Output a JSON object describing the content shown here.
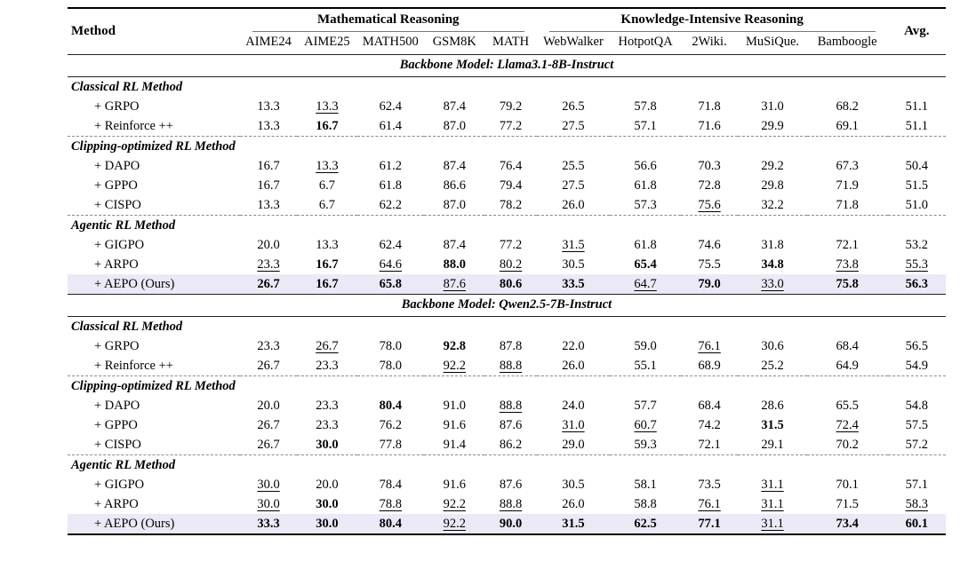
{
  "colors": {
    "highlight_row": "#ece9f7"
  },
  "table": {
    "method_header": "Method",
    "avg_header": "Avg.",
    "groups": [
      {
        "label": "Mathematical Reasoning",
        "columns": [
          "AIME24",
          "AIME25",
          "MATH500",
          "GSM8K",
          "MATH"
        ]
      },
      {
        "label": "Knowledge-Intensive Reasoning",
        "columns": [
          "WebWalker",
          "HotpotQA",
          "2Wiki.",
          "MuSiQue.",
          "Bamboogle"
        ]
      }
    ],
    "sections": [
      {
        "banner": "Backbone Model: Llama3.1-8B-Instruct",
        "subsections": [
          {
            "label": "Classical RL Method",
            "rows": [
              {
                "method": "+ GRPO",
                "values": [
                  "13.3",
                  "13.3",
                  "62.4",
                  "87.4",
                  "79.2",
                  "26.5",
                  "57.8",
                  "71.8",
                  "31.0",
                  "68.2",
                  "51.1"
                ],
                "bold": [],
                "underline": [
                  1
                ],
                "highlight": false
              },
              {
                "method": "+ Reinforce ++",
                "values": [
                  "13.3",
                  "16.7",
                  "61.4",
                  "87.0",
                  "77.2",
                  "27.5",
                  "57.1",
                  "71.6",
                  "29.9",
                  "69.1",
                  "51.1"
                ],
                "bold": [
                  1
                ],
                "underline": [],
                "highlight": false
              }
            ]
          },
          {
            "label": "Clipping-optimized RL Method",
            "rows": [
              {
                "method": "+ DAPO",
                "values": [
                  "16.7",
                  "13.3",
                  "61.2",
                  "87.4",
                  "76.4",
                  "25.5",
                  "56.6",
                  "70.3",
                  "29.2",
                  "67.3",
                  "50.4"
                ],
                "bold": [],
                "underline": [
                  1
                ],
                "highlight": false
              },
              {
                "method": "+ GPPO",
                "values": [
                  "16.7",
                  "6.7",
                  "61.8",
                  "86.6",
                  "79.4",
                  "27.5",
                  "61.8",
                  "72.8",
                  "29.8",
                  "71.9",
                  "51.5"
                ],
                "bold": [],
                "underline": [],
                "highlight": false
              },
              {
                "method": "+ CISPO",
                "values": [
                  "13.3",
                  "6.7",
                  "62.2",
                  "87.0",
                  "78.2",
                  "26.0",
                  "57.3",
                  "75.6",
                  "32.2",
                  "71.8",
                  "51.0"
                ],
                "bold": [],
                "underline": [
                  7
                ],
                "highlight": false
              }
            ]
          },
          {
            "label": "Agentic RL Method",
            "rows": [
              {
                "method": "+ GIGPO",
                "values": [
                  "20.0",
                  "13.3",
                  "62.4",
                  "87.4",
                  "77.2",
                  "31.5",
                  "61.8",
                  "74.6",
                  "31.8",
                  "72.1",
                  "53.2"
                ],
                "bold": [],
                "underline": [
                  5
                ],
                "highlight": false
              },
              {
                "method": "+ ARPO",
                "values": [
                  "23.3",
                  "16.7",
                  "64.6",
                  "88.0",
                  "80.2",
                  "30.5",
                  "65.4",
                  "75.5",
                  "34.8",
                  "73.8",
                  "55.3"
                ],
                "bold": [
                  1,
                  3,
                  6,
                  8
                ],
                "underline": [
                  0,
                  2,
                  4,
                  9,
                  10
                ],
                "highlight": false
              },
              {
                "method": "+ AEPO (Ours)",
                "values": [
                  "26.7",
                  "16.7",
                  "65.8",
                  "87.6",
                  "80.6",
                  "33.5",
                  "64.7",
                  "79.0",
                  "33.0",
                  "75.8",
                  "56.3"
                ],
                "bold": [
                  0,
                  1,
                  2,
                  4,
                  5,
                  7,
                  9,
                  10
                ],
                "underline": [
                  3,
                  6,
                  8
                ],
                "highlight": true
              }
            ]
          }
        ]
      },
      {
        "banner": "Backbone Model: Qwen2.5-7B-Instruct",
        "subsections": [
          {
            "label": "Classical RL Method",
            "rows": [
              {
                "method": "+ GRPO",
                "values": [
                  "23.3",
                  "26.7",
                  "78.0",
                  "92.8",
                  "87.8",
                  "22.0",
                  "59.0",
                  "76.1",
                  "30.6",
                  "68.4",
                  "56.5"
                ],
                "bold": [
                  3
                ],
                "underline": [
                  1,
                  7
                ],
                "highlight": false
              },
              {
                "method": "+ Reinforce ++",
                "values": [
                  "26.7",
                  "23.3",
                  "78.0",
                  "92.2",
                  "88.8",
                  "26.0",
                  "55.1",
                  "68.9",
                  "25.2",
                  "64.9",
                  "54.9"
                ],
                "bold": [],
                "underline": [
                  3,
                  4
                ],
                "highlight": false
              }
            ]
          },
          {
            "label": "Clipping-optimized RL Method",
            "rows": [
              {
                "method": "+ DAPO",
                "values": [
                  "20.0",
                  "23.3",
                  "80.4",
                  "91.0",
                  "88.8",
                  "24.0",
                  "57.7",
                  "68.4",
                  "28.6",
                  "65.5",
                  "54.8"
                ],
                "bold": [
                  2
                ],
                "underline": [
                  4
                ],
                "highlight": false
              },
              {
                "method": "+ GPPO",
                "values": [
                  "26.7",
                  "23.3",
                  "76.2",
                  "91.6",
                  "87.6",
                  "31.0",
                  "60.7",
                  "74.2",
                  "31.5",
                  "72.4",
                  "57.5"
                ],
                "bold": [
                  8
                ],
                "underline": [
                  5,
                  6,
                  9
                ],
                "highlight": false
              },
              {
                "method": "+ CISPO",
                "values": [
                  "26.7",
                  "30.0",
                  "77.8",
                  "91.4",
                  "86.2",
                  "29.0",
                  "59.3",
                  "72.1",
                  "29.1",
                  "70.2",
                  "57.2"
                ],
                "bold": [
                  1
                ],
                "underline": [],
                "highlight": false
              }
            ]
          },
          {
            "label": "Agentic RL Method",
            "rows": [
              {
                "method": "+ GIGPO",
                "values": [
                  "30.0",
                  "20.0",
                  "78.4",
                  "91.6",
                  "87.6",
                  "30.5",
                  "58.1",
                  "73.5",
                  "31.1",
                  "70.1",
                  "57.1"
                ],
                "bold": [],
                "underline": [
                  0,
                  8
                ],
                "highlight": false
              },
              {
                "method": "+ ARPO",
                "values": [
                  "30.0",
                  "30.0",
                  "78.8",
                  "92.2",
                  "88.8",
                  "26.0",
                  "58.8",
                  "76.1",
                  "31.1",
                  "71.5",
                  "58.3"
                ],
                "bold": [
                  1
                ],
                "underline": [
                  0,
                  2,
                  3,
                  4,
                  7,
                  8,
                  10
                ],
                "highlight": false
              },
              {
                "method": "+ AEPO (Ours)",
                "values": [
                  "33.3",
                  "30.0",
                  "80.4",
                  "92.2",
                  "90.0",
                  "31.5",
                  "62.5",
                  "77.1",
                  "31.1",
                  "73.4",
                  "60.1"
                ],
                "bold": [
                  0,
                  1,
                  2,
                  4,
                  5,
                  6,
                  7,
                  9,
                  10
                ],
                "underline": [
                  3,
                  8
                ],
                "highlight": true
              }
            ]
          }
        ]
      }
    ]
  }
}
